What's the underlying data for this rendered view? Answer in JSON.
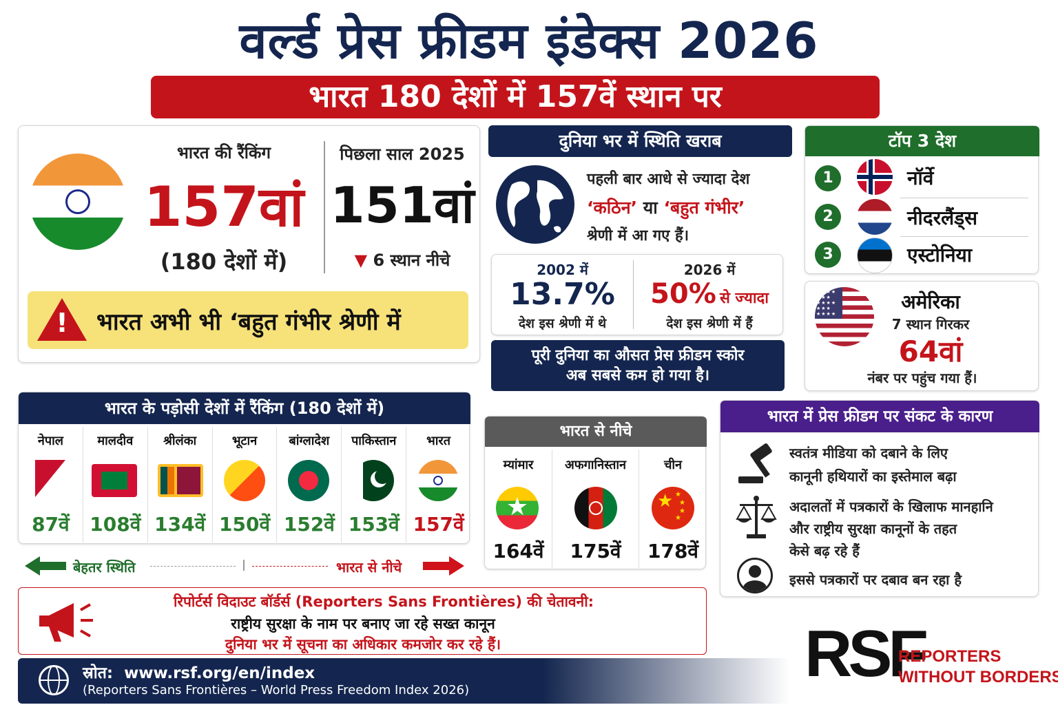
{
  "title": "वर्ल्ड प्रेस फ्रीडम इंडेक्स 2026",
  "subtitle": "भारत 180 देशों में 157वें स्थान पर",
  "india": {
    "rank_label": "भारत की रैंकिंग",
    "rank": "157वां",
    "rank_of": "(180 देशों में)",
    "prev_label": "पिछला साल 2025",
    "prev_rank": "151वां",
    "change": "6 स्थान नीचे",
    "warning": "भारत अभी भी ‘बहुत गंभीर श्रेणी में"
  },
  "world": {
    "header": "दुनिया भर में स्थिति खराब",
    "line1": "पहली बार आधे से ज्यादा देश",
    "line2_a": "‘कठिन’",
    "line2_b": " या ",
    "line2_c": "‘बहुत गंभीर’",
    "line3": "श्रेणी में आ गए हैं।",
    "stat1_year": "2002 में",
    "stat1_value": "13.7%",
    "stat1_caption": "देश इस श्रेणी में थे",
    "stat2_year": "2026 में",
    "stat2_value": "50%",
    "stat2_suffix": "से ज्यादा",
    "stat2_caption": "देश इस श्रेणी में हैं",
    "avg_line1": "पूरी दुनिया का औसत प्रेस फ्रीडम स्कोर",
    "avg_line2": "अब सबसे कम हो गया है।"
  },
  "top3": {
    "header": "टॉप 3 देश",
    "items": [
      {
        "rank": "1",
        "name": "नॉर्वे"
      },
      {
        "rank": "2",
        "name": "नीदरलैंड्स"
      },
      {
        "rank": "3",
        "name": "एस्टोनिया"
      }
    ]
  },
  "usa": {
    "name": "अमेरिका",
    "line1": "7 स्थान गिरकर",
    "rank": "64वां",
    "line2": "नंबर पर पहुंच गया हैं।"
  },
  "neighbors": {
    "header": "भारत के पड़ोसी देशों में रैंकिंग (180 देशों में)",
    "items": [
      {
        "name": "नेपाल",
        "rank": "87वें"
      },
      {
        "name": "मालदीव",
        "rank": "108वें"
      },
      {
        "name": "श्रीलंका",
        "rank": "134वें"
      },
      {
        "name": "भूटान",
        "rank": "150वें"
      },
      {
        "name": "बांग्लादेश",
        "rank": "152वें"
      },
      {
        "name": "पाकिस्तान",
        "rank": "153वें"
      },
      {
        "name": "भारत",
        "rank": "157वें"
      }
    ],
    "better": "बेहतर स्थिति",
    "below": "भारत से नीचे"
  },
  "below_india": {
    "header": "भारत से नीचे",
    "items": [
      {
        "name": "म्यांमार",
        "rank": "164वें"
      },
      {
        "name": "अफगानिस्तान",
        "rank": "175वें"
      },
      {
        "name": "चीन",
        "rank": "178वें"
      }
    ]
  },
  "reasons": {
    "header": "भारत में प्रेस फ्रीडम पर संकट के कारण",
    "r1a": "स्वतंत्र मीडिया को दबाने के लिए",
    "r1b": "कानूनी हथियारों का इस्तेमाल बढ़ा",
    "r2a": "अदालतों में पत्रकारों के खिलाफ मानहानि",
    "r2b": "और राष्ट्रीय सुरक्षा कानूनों के तहत",
    "r2c": "केसे बढ़ रहे हैं",
    "r3": "इससे पत्रकारों पर दबाव बन रहा है"
  },
  "rsf_warning": {
    "title": "रिपोर्टर्स विदाउट बॉर्डर्स (Reporters Sans Frontières) की चेतावनी:",
    "line1": "राष्ट्रीय सुरक्षा के नाम पर बनाए जा रहे सख्त कानून",
    "line2": "दुनिया भर में सूचना का अधिकार कमजोर कर रहे हैं।"
  },
  "source": {
    "label": "स्रोत:",
    "url": "www.rsf.org/en/index",
    "note": "(Reporters Sans Frontières – World Press Freedom Index 2026)"
  },
  "logo": {
    "mark": "RSF",
    "line1": "REPORTERS",
    "line2": "WITHOUT BORDERS"
  },
  "colors": {
    "navy": "#14264f",
    "red": "#c4141b",
    "green": "#2a7d2f",
    "purple": "#4a1f8c",
    "gray": "#5a5a5a",
    "yellow": "#f7e27a"
  }
}
